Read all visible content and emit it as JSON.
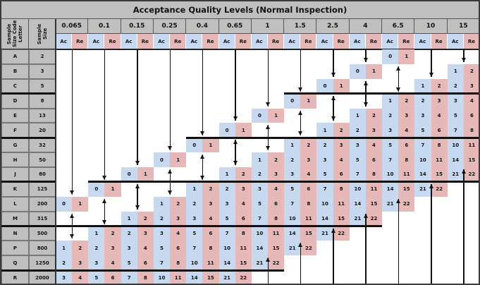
{
  "title": "Acceptance Quality Levels  (Normal Inspection)",
  "headers": {
    "code_letter": "Sample Size Code Letter",
    "sample_size": "Sample Size",
    "ac": "Ac",
    "re": "Re"
  },
  "aql_levels": [
    "0.065",
    "0.1",
    "0.15",
    "0.25",
    "0.4",
    "0.65",
    "1",
    "1.5",
    "2.5",
    "4",
    "6.5",
    "10",
    "15"
  ],
  "rows": [
    {
      "letter": "A",
      "size": "2",
      "cells": [
        null,
        null,
        null,
        null,
        null,
        null,
        null,
        null,
        null,
        null,
        [
          0,
          1
        ],
        null,
        null
      ]
    },
    {
      "letter": "B",
      "size": "3",
      "cells": [
        null,
        null,
        null,
        null,
        null,
        null,
        null,
        null,
        null,
        [
          0,
          1
        ],
        null,
        null,
        [
          1,
          2
        ]
      ]
    },
    {
      "letter": "C",
      "size": "5",
      "cells": [
        null,
        null,
        null,
        null,
        null,
        null,
        null,
        null,
        [
          0,
          1
        ],
        null,
        null,
        [
          1,
          2
        ],
        [
          2,
          3
        ]
      ]
    },
    {
      "letter": "D",
      "size": "8",
      "cells": [
        null,
        null,
        null,
        null,
        null,
        null,
        null,
        [
          0,
          1
        ],
        null,
        null,
        [
          1,
          2
        ],
        [
          2,
          3
        ],
        [
          3,
          4
        ]
      ]
    },
    {
      "letter": "E",
      "size": "13",
      "cells": [
        null,
        null,
        null,
        null,
        null,
        null,
        [
          0,
          1
        ],
        null,
        null,
        [
          1,
          2
        ],
        [
          2,
          3
        ],
        [
          3,
          4
        ],
        [
          5,
          6
        ]
      ]
    },
    {
      "letter": "F",
      "size": "20",
      "cells": [
        null,
        null,
        null,
        null,
        null,
        [
          0,
          1
        ],
        null,
        null,
        [
          1,
          2
        ],
        [
          2,
          3
        ],
        [
          3,
          4
        ],
        [
          5,
          6
        ],
        [
          7,
          8
        ]
      ]
    },
    {
      "letter": "G",
      "size": "32",
      "cells": [
        null,
        null,
        null,
        null,
        [
          0,
          1
        ],
        null,
        null,
        [
          1,
          2
        ],
        [
          2,
          3
        ],
        [
          3,
          4
        ],
        [
          5,
          6
        ],
        [
          7,
          8
        ],
        [
          10,
          11
        ]
      ]
    },
    {
      "letter": "H",
      "size": "50",
      "cells": [
        null,
        null,
        null,
        [
          0,
          1
        ],
        null,
        null,
        [
          1,
          2
        ],
        [
          2,
          3
        ],
        [
          3,
          4
        ],
        [
          5,
          6
        ],
        [
          7,
          8
        ],
        [
          10,
          11
        ],
        [
          14,
          15
        ]
      ]
    },
    {
      "letter": "J",
      "size": "80",
      "cells": [
        null,
        null,
        [
          0,
          1
        ],
        null,
        null,
        [
          1,
          2
        ],
        [
          2,
          3
        ],
        [
          3,
          4
        ],
        [
          5,
          6
        ],
        [
          7,
          8
        ],
        [
          10,
          11
        ],
        [
          14,
          15
        ],
        [
          21,
          22
        ]
      ]
    },
    {
      "letter": "K",
      "size": "125",
      "cells": [
        null,
        [
          0,
          1
        ],
        null,
        null,
        [
          1,
          2
        ],
        [
          2,
          3
        ],
        [
          3,
          4
        ],
        [
          5,
          6
        ],
        [
          7,
          8
        ],
        [
          10,
          11
        ],
        [
          14,
          15
        ],
        [
          21,
          22
        ],
        null
      ]
    },
    {
      "letter": "L",
      "size": "200",
      "cells": [
        [
          0,
          1
        ],
        null,
        null,
        [
          1,
          2
        ],
        [
          2,
          3
        ],
        [
          3,
          4
        ],
        [
          5,
          6
        ],
        [
          7,
          8
        ],
        [
          10,
          11
        ],
        [
          14,
          15
        ],
        [
          21,
          22
        ],
        null,
        null
      ]
    },
    {
      "letter": "M",
      "size": "315",
      "cells": [
        null,
        null,
        [
          1,
          2
        ],
        [
          2,
          3
        ],
        [
          3,
          4
        ],
        [
          5,
          6
        ],
        [
          7,
          8
        ],
        [
          10,
          11
        ],
        [
          14,
          15
        ],
        [
          21,
          22
        ],
        null,
        null,
        null
      ]
    },
    {
      "letter": "N",
      "size": "500",
      "cells": [
        null,
        [
          1,
          2
        ],
        [
          2,
          3
        ],
        [
          3,
          4
        ],
        [
          5,
          6
        ],
        [
          7,
          8
        ],
        [
          10,
          11
        ],
        [
          14,
          15
        ],
        [
          21,
          22
        ],
        null,
        null,
        null,
        null
      ]
    },
    {
      "letter": "P",
      "size": "800",
      "cells": [
        [
          1,
          2
        ],
        [
          2,
          3
        ],
        [
          3,
          4
        ],
        [
          5,
          6
        ],
        [
          7,
          8
        ],
        [
          10,
          11
        ],
        [
          14,
          15
        ],
        [
          21,
          22
        ],
        null,
        null,
        null,
        null,
        null
      ]
    },
    {
      "letter": "Q",
      "size": "1250",
      "cells": [
        [
          2,
          3
        ],
        [
          3,
          4
        ],
        [
          5,
          6
        ],
        [
          7,
          8
        ],
        [
          10,
          11
        ],
        [
          14,
          15
        ],
        [
          21,
          22
        ],
        null,
        null,
        null,
        null,
        null,
        null
      ]
    },
    {
      "letter": "R",
      "size": "2000",
      "cells": [
        [
          3,
          4
        ],
        [
          5,
          6
        ],
        [
          7,
          8
        ],
        [
          10,
          11
        ],
        [
          14,
          15
        ],
        [
          21,
          22
        ],
        null,
        null,
        null,
        null,
        null,
        null,
        null
      ]
    }
  ],
  "arrows": [
    {
      "col": 0,
      "type": "down",
      "from": 0,
      "to": 9
    },
    {
      "col": 0,
      "type": "both",
      "from": 11,
      "to": 12
    },
    {
      "col": 1,
      "type": "down",
      "from": 0,
      "to": 8
    },
    {
      "col": 1,
      "type": "both",
      "from": 10,
      "to": 11
    },
    {
      "col": 2,
      "type": "down",
      "from": 0,
      "to": 7
    },
    {
      "col": 2,
      "type": "both",
      "from": 9,
      "to": 10
    },
    {
      "col": 3,
      "type": "down",
      "from": 0,
      "to": 6
    },
    {
      "col": 3,
      "type": "both",
      "from": 8,
      "to": 9
    },
    {
      "col": 4,
      "type": "down",
      "from": 0,
      "to": 5
    },
    {
      "col": 4,
      "type": "both",
      "from": 7,
      "to": 8
    },
    {
      "col": 5,
      "type": "down",
      "from": 0,
      "to": 4
    },
    {
      "col": 5,
      "type": "both",
      "from": 6,
      "to": 7
    },
    {
      "col": 6,
      "type": "down",
      "from": 0,
      "to": 3
    },
    {
      "col": 6,
      "type": "both",
      "from": 5,
      "to": 6
    },
    {
      "col": 6,
      "type": "up",
      "from": 14,
      "to": 15
    },
    {
      "col": 7,
      "type": "down",
      "from": 0,
      "to": 2
    },
    {
      "col": 7,
      "type": "both",
      "from": 4,
      "to": 5
    },
    {
      "col": 7,
      "type": "up",
      "from": 13,
      "to": 15
    },
    {
      "col": 8,
      "type": "down",
      "from": 0,
      "to": 1
    },
    {
      "col": 8,
      "type": "both",
      "from": 3,
      "to": 4
    },
    {
      "col": 8,
      "type": "up",
      "from": 12,
      "to": 15
    },
    {
      "col": 9,
      "type": "down",
      "from": 0,
      "to": 0
    },
    {
      "col": 9,
      "type": "both",
      "from": 2,
      "to": 3
    },
    {
      "col": 9,
      "type": "up",
      "from": 11,
      "to": 15
    },
    {
      "col": 10,
      "type": "both",
      "from": 1,
      "to": 2
    },
    {
      "col": 10,
      "type": "up",
      "from": 10,
      "to": 15
    },
    {
      "col": 11,
      "type": "down",
      "from": 0,
      "to": 1
    },
    {
      "col": 11,
      "type": "up",
      "from": 9,
      "to": 15
    },
    {
      "col": 12,
      "type": "down",
      "from": 0,
      "to": 0
    },
    {
      "col": 12,
      "type": "up",
      "from": 8,
      "to": 15
    }
  ],
  "thick_lines": [
    {
      "after_row": 2,
      "from_col": 7,
      "to_col": 13
    },
    {
      "after_row": 5,
      "from_col": 4,
      "to_col": 13
    },
    {
      "after_row": 8,
      "from_col": 1,
      "to_col": 13
    },
    {
      "after_row": 11,
      "from_col": 0,
      "to_col": 10
    },
    {
      "after_row": 14,
      "from_col": 0,
      "to_col": 7
    }
  ],
  "colors": {
    "ac": "#c6d9f0",
    "re": "#e6b8b7",
    "header": "#bfbfbf"
  }
}
